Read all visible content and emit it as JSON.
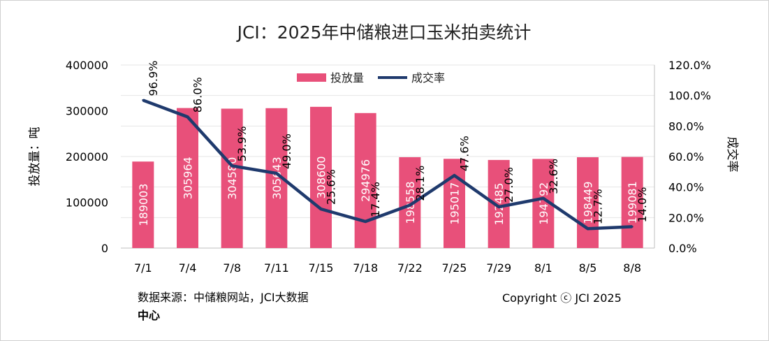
{
  "chart_data": {
    "type": "bar+line",
    "title": "JCI：2025年中储粮进口玉米拍卖统计",
    "ylabel_left": "投放量：吨",
    "ylabel_right": "成交率",
    "categories": [
      "7/1",
      "7/4",
      "7/8",
      "7/11",
      "7/15",
      "7/18",
      "7/22",
      "7/25",
      "7/29",
      "8/1",
      "8/5",
      "8/8"
    ],
    "series": [
      {
        "name": "投放量",
        "type": "bar",
        "axis": "left",
        "values": [
          189003,
          305964,
          304580,
          305643,
          308600,
          294976,
          198558,
          195017,
          192485,
          194792,
          198449,
          199081
        ],
        "labels": [
          "189003",
          "305964",
          "304580",
          "305643",
          "308600",
          "294976",
          "198558",
          "195017",
          "192485",
          "194792",
          "198449",
          "199081"
        ]
      },
      {
        "name": "成交率",
        "type": "line",
        "axis": "right",
        "values": [
          96.9,
          86.0,
          53.9,
          49.0,
          25.6,
          17.4,
          28.1,
          47.6,
          27.0,
          32.6,
          12.7,
          14.0
        ],
        "labels": [
          "96.9%",
          "86.0%",
          "53.9%",
          "49.0%",
          "25.6%",
          "17.4%",
          "28.1%",
          "47.6%",
          "27.0%",
          "32.6%",
          "12.7%",
          "14.0%"
        ]
      }
    ],
    "left_axis": {
      "min": 0,
      "max": 400000,
      "ticks": [
        "0",
        "100000",
        "200000",
        "300000",
        "400000"
      ]
    },
    "right_axis": {
      "min": 0,
      "max": 120,
      "ticks": [
        "0.0%",
        "20.0%",
        "40.0%",
        "60.0%",
        "80.0%",
        "100.0%",
        "120.0%"
      ]
    },
    "legend_position": "top-center",
    "grid": true,
    "colors": {
      "bar": "#e8507a",
      "line": "#1f3a6d",
      "grid": "#e6e6e6"
    }
  },
  "footer": {
    "source_main": "数据来源：中储粮网站，JCI大数据",
    "source_tail": "中心",
    "copyright": "Copyright ⓒ JCI 2025"
  }
}
